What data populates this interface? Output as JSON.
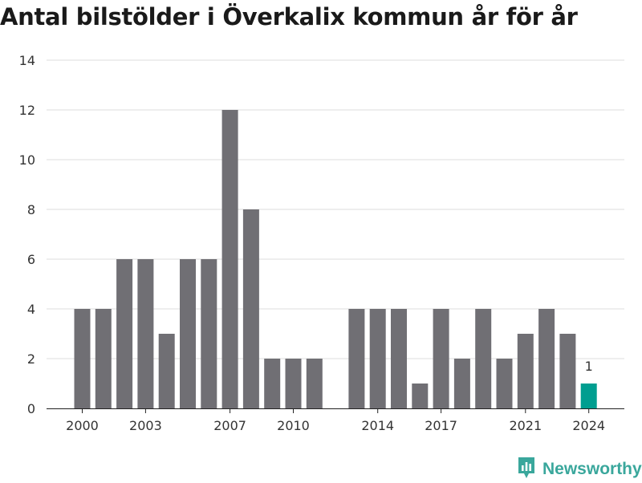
{
  "title": "Antal bilstölder i Överkalix kommun år för år",
  "brand": {
    "name": "Newsworthy",
    "icon": "newsworthy-logo-icon",
    "color": "#3aa79c"
  },
  "colors": {
    "bar": "#706f74",
    "highlight": "#009e90",
    "grid": "#dddddd"
  },
  "chart_data": {
    "type": "bar",
    "categories": [
      "2000",
      "2001",
      "2002",
      "2003",
      "2004",
      "2005",
      "2006",
      "2007",
      "2008",
      "2009",
      "2010",
      "2011",
      "2012",
      "2013",
      "2014",
      "2015",
      "2016",
      "2017",
      "2018",
      "2019",
      "2020",
      "2021",
      "2022",
      "2023",
      "2024"
    ],
    "values": [
      4,
      4,
      6,
      6,
      3,
      6,
      6,
      12,
      8,
      2,
      2,
      2,
      null,
      4,
      4,
      4,
      1,
      4,
      2,
      4,
      2,
      3,
      4,
      3,
      1
    ],
    "x_ticks": [
      "2000",
      "2003",
      "2007",
      "2010",
      "2014",
      "2017",
      "2021",
      "2024"
    ],
    "y_ticks": [
      0,
      2,
      4,
      6,
      8,
      10,
      12,
      14
    ],
    "ylim": [
      0,
      14
    ],
    "highlight_category": "2024",
    "data_labels": [
      {
        "category": "2024",
        "text": "1"
      }
    ],
    "xlabel": "",
    "ylabel": "",
    "grid": true,
    "legend": "none"
  }
}
